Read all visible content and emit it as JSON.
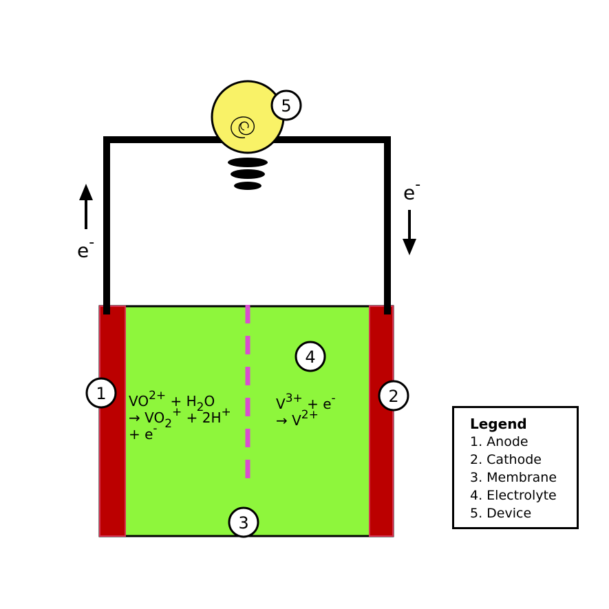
{
  "markers": {
    "m1": "1",
    "m2": "2",
    "m3": "3",
    "m4": "4",
    "m5": "5"
  },
  "electron_label": {
    "base": "e",
    "charge": "-"
  },
  "anode_reaction": {
    "line1": {
      "species": "VO",
      "charge": "2+",
      "plus_water": " + H",
      "water_sub": "2",
      "water_o": "O"
    },
    "line2": {
      "arrow_species": "→ VO",
      "sub": "2",
      "charge": "+",
      "rest": " + 2H",
      "h_charge": "+"
    },
    "line3": {
      "text": "+ e",
      "charge": "-"
    }
  },
  "cathode_reaction": {
    "line1": {
      "species": "V",
      "charge": "3+",
      "rest": " + e",
      "e_charge": "-"
    },
    "line2": {
      "arrow_species": "→ V",
      "charge": "2+"
    }
  },
  "legend": {
    "title": "Legend",
    "items": [
      "1. Anode",
      "2. Cathode",
      "3. Membrane",
      "4. Electrolyte",
      "5. Device"
    ]
  },
  "colors": {
    "electrolyte": "#8ef63c",
    "electrode": "#bb0000",
    "membrane": "#d94fd0",
    "bulb": "#f9f267",
    "wire": "#000000"
  }
}
